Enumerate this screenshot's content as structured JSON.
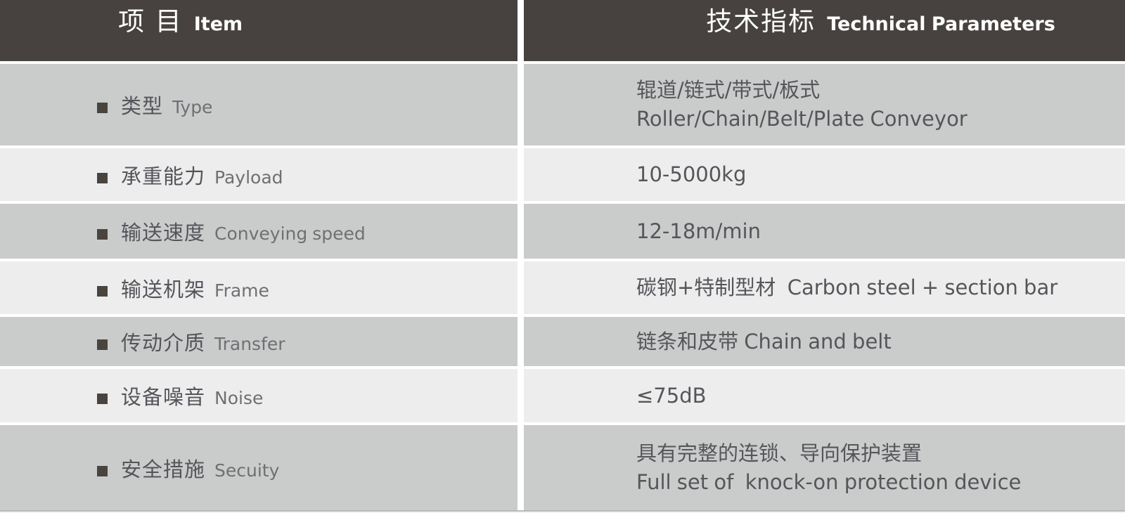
{
  "table": {
    "header": {
      "item_zh": "项 目",
      "item_en": "Item",
      "params_zh": "技术指标",
      "params_en": "Technical Parameters"
    },
    "rows": [
      {
        "label_zh": "类型",
        "label_en": "Type",
        "value_zh": "辊道/链式/带式/板式",
        "value_en": "Roller/Chain/Belt/Plate Conveyor"
      },
      {
        "label_zh": "承重能力",
        "label_en": "Payload",
        "value": "10-5000kg"
      },
      {
        "label_zh": "输送速度",
        "label_en": "Conveying speed",
        "value": "12-18m/min"
      },
      {
        "label_zh": "输送机架",
        "label_en": "Frame",
        "value": "碳钢+特制型材  Carbon steel + section bar"
      },
      {
        "label_zh": "传动介质",
        "label_en": "Transfer",
        "value": "链条和皮带 Chain and belt"
      },
      {
        "label_zh": "设备噪音",
        "label_en": "Noise",
        "value": "≤75dB"
      },
      {
        "label_zh": "安全措施",
        "label_en": "Secuity",
        "value_zh": "具有完整的连锁、导向保护装置",
        "value_en": "Full set of  knock-on protection device"
      }
    ],
    "colors": {
      "header_bg": "#47423f",
      "header_text": "#ffffff",
      "row_gray": "#c9cccb",
      "row_light": "#ededee",
      "gap": "#ffffff",
      "label_zh": "#54555a",
      "label_en": "#6f7073",
      "value_text": "#55565a",
      "bullet": "#4a443f",
      "bottom_line": "#b8bbba"
    }
  }
}
